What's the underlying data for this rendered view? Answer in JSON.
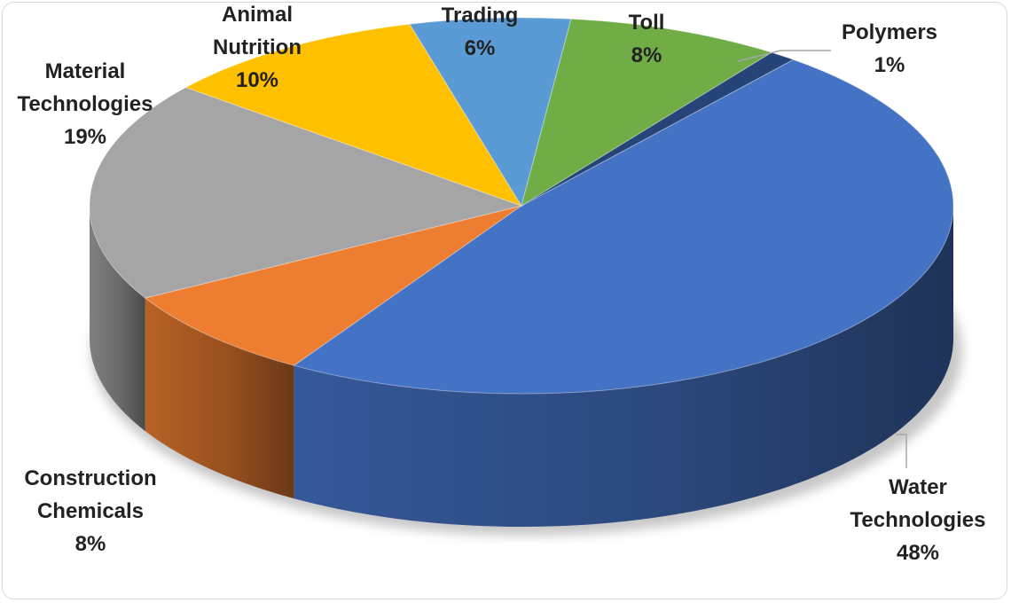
{
  "chart_data": {
    "type": "pie",
    "title": "",
    "style": "3d",
    "slices": [
      {
        "label": "Water Technologies",
        "value": 48,
        "label_text": "48%",
        "name_lines": [
          "Water",
          "Technologies"
        ],
        "color": "#4472c4"
      },
      {
        "label": "Construction Chemicals",
        "value": 8,
        "label_text": "8%",
        "name_lines": [
          "Construction",
          "Chemicals"
        ],
        "color": "#ed7d31"
      },
      {
        "label": "Material Technologies",
        "value": 19,
        "label_text": "19%",
        "name_lines": [
          "Material",
          "Technologies"
        ],
        "color": "#a5a5a5"
      },
      {
        "label": "Animal Nutrition",
        "value": 10,
        "label_text": "10%",
        "name_lines": [
          "Animal",
          "Nutrition"
        ],
        "color": "#ffc000"
      },
      {
        "label": "Trading",
        "value": 6,
        "label_text": "6%",
        "name_lines": [
          "Trading"
        ],
        "color": "#5b9bd5"
      },
      {
        "label": "Toll",
        "value": 8,
        "label_text": "8%",
        "name_lines": [
          "Toll"
        ],
        "color": "#70ad47"
      },
      {
        "label": "Polymers",
        "value": 1,
        "label_text": "1%",
        "name_lines": [
          "Polymers"
        ],
        "color": "#264478"
      }
    ],
    "legend": "none",
    "data_labels": "category name and percentage"
  }
}
